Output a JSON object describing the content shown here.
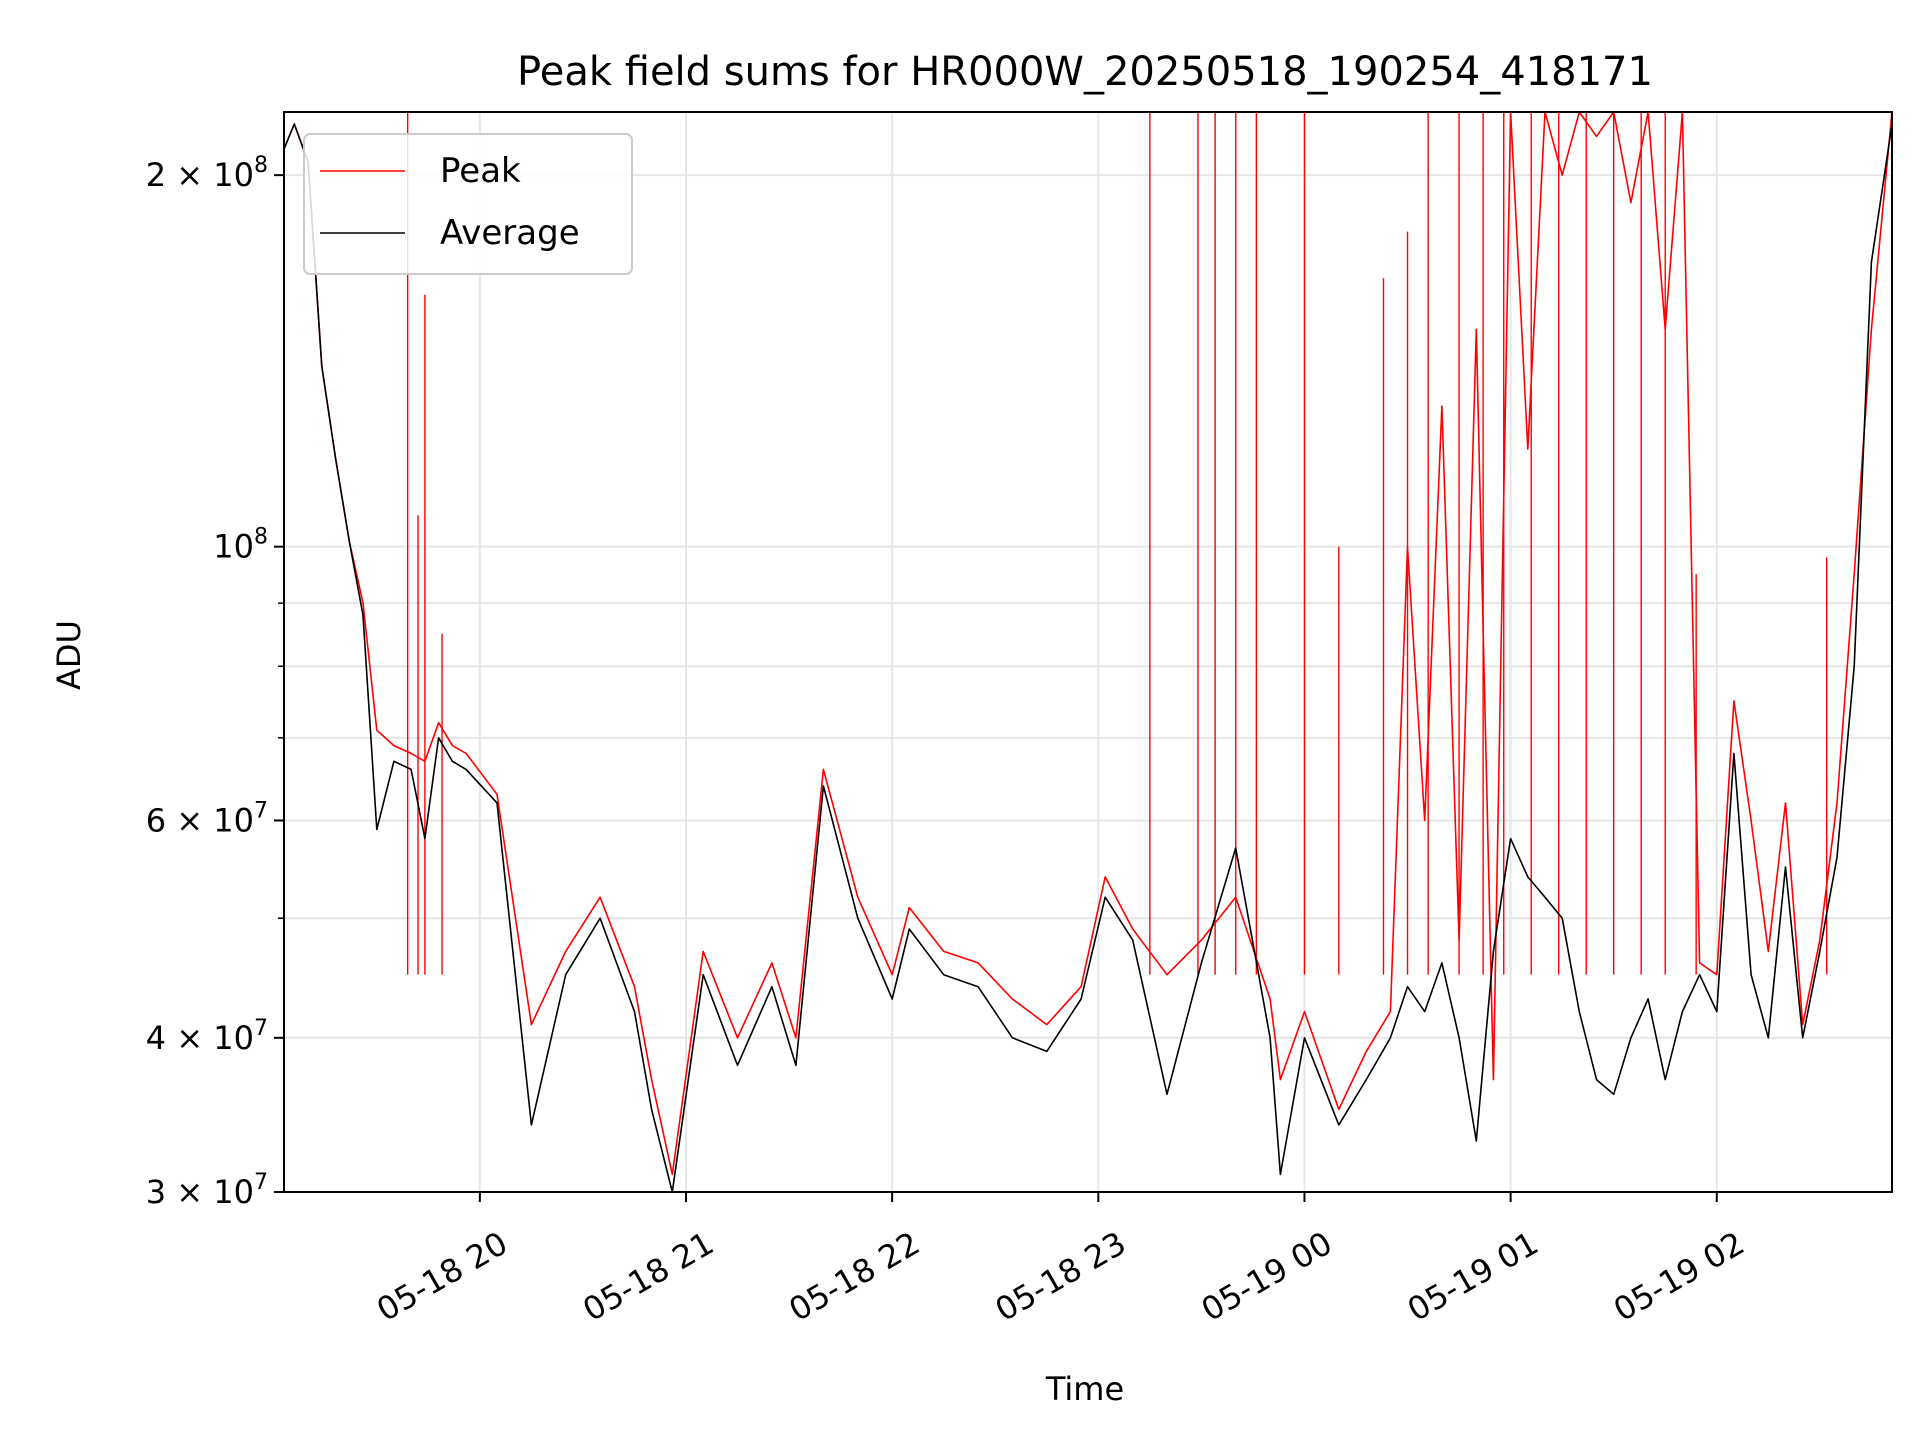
{
  "chart_data": {
    "type": "line",
    "title": "Peak field sums for HR000W_20250518_190254_418171",
    "xlabel": "Time",
    "ylabel": "ADU",
    "yscale": "log",
    "ylim": [
      30000000,
      225000000
    ],
    "xlim": [
      "05-18 19:03",
      "05-19 02:51"
    ],
    "grid": true,
    "legend_position": "top-left",
    "x_tick_labels": [
      "05-18 20",
      "05-18 21",
      "05-18 22",
      "05-18 23",
      "05-19 00",
      "05-19 01",
      "05-19 02"
    ],
    "y_tick_labels": [
      "3 × 10⁷",
      "4 × 10⁷",
      "6 × 10⁷",
      "10⁸",
      "2 × 10⁸"
    ],
    "series": [
      {
        "name": "Peak",
        "color": "#ff0000",
        "x": [
          "05-18 19:03",
          "05-18 19:06",
          "05-18 19:10",
          "05-18 19:14",
          "05-18 19:18",
          "05-18 19:22",
          "05-18 19:26",
          "05-18 19:30",
          "05-18 19:35",
          "05-18 19:40",
          "05-18 19:44",
          "05-18 19:48",
          "05-18 19:52",
          "05-18 19:56",
          "05-18 20:05",
          "05-18 20:15",
          "05-18 20:25",
          "05-18 20:35",
          "05-18 20:45",
          "05-18 20:50",
          "05-18 20:56",
          "05-18 21:05",
          "05-18 21:15",
          "05-18 21:25",
          "05-18 21:32",
          "05-18 21:40",
          "05-18 21:50",
          "05-18 22:00",
          "05-18 22:05",
          "05-18 22:15",
          "05-18 22:25",
          "05-18 22:35",
          "05-18 22:45",
          "05-18 22:55",
          "05-18 23:02",
          "05-18 23:10",
          "05-18 23:20",
          "05-18 23:30",
          "05-18 23:40",
          "05-18 23:50",
          "05-18 23:53",
          "05-19 00:00",
          "05-19 00:10",
          "05-19 00:18",
          "05-19 00:25",
          "05-19 00:30",
          "05-19 00:35",
          "05-19 00:40",
          "05-19 00:45",
          "05-19 00:50",
          "05-19 00:55",
          "05-19 01:00",
          "05-19 01:05",
          "05-19 01:10",
          "05-19 01:15",
          "05-19 01:20",
          "05-19 01:25",
          "05-19 01:30",
          "05-19 01:35",
          "05-19 01:40",
          "05-19 01:45",
          "05-19 01:50",
          "05-19 01:55",
          "05-19 02:00",
          "05-19 02:05",
          "05-19 02:10",
          "05-19 02:15",
          "05-19 02:20",
          "05-19 02:25",
          "05-19 02:30",
          "05-19 02:35",
          "05-19 02:40",
          "05-19 02:45",
          "05-19 02:51"
        ],
        "values": [
          210000000,
          220000000,
          205000000,
          140000000,
          118000000,
          101000000,
          90000000,
          71000000,
          69000000,
          68000000,
          67000000,
          72000000,
          69000000,
          68000000,
          63000000,
          41000000,
          47000000,
          52000000,
          44000000,
          37000000,
          31000000,
          47000000,
          40000000,
          46000000,
          40000000,
          66000000,
          52000000,
          45000000,
          51000000,
          47000000,
          46000000,
          43000000,
          41000000,
          44000000,
          54000000,
          49000000,
          45000000,
          48000000,
          52000000,
          43000000,
          37000000,
          42000000,
          35000000,
          39000000,
          42000000,
          100000000,
          60000000,
          130000000,
          48000000,
          150000000,
          37000000,
          225000000,
          120000000,
          225000000,
          200000000,
          225000000,
          215000000,
          225000000,
          190000000,
          225000000,
          150000000,
          225000000,
          46000000,
          45000000,
          75000000,
          60000000,
          47000000,
          62000000,
          41000000,
          48000000,
          62000000,
          95000000,
          150000000,
          225000000
        ],
        "spikes": [
          {
            "x": "05-18 19:39",
            "value": 225000000
          },
          {
            "x": "05-18 19:42",
            "value": 106000000
          },
          {
            "x": "05-18 19:44",
            "value": 160000000
          },
          {
            "x": "05-18 19:49",
            "value": 85000000
          },
          {
            "x": "05-18 23:15",
            "value": 225000000
          },
          {
            "x": "05-18 23:29",
            "value": 225000000
          },
          {
            "x": "05-18 23:34",
            "value": 225000000
          },
          {
            "x": "05-18 23:40",
            "value": 225000000
          },
          {
            "x": "05-18 23:46",
            "value": 225000000
          },
          {
            "x": "05-19 00:00",
            "value": 225000000
          },
          {
            "x": "05-19 00:10",
            "value": 100000000
          },
          {
            "x": "05-19 00:23",
            "value": 165000000
          },
          {
            "x": "05-19 00:30",
            "value": 180000000
          },
          {
            "x": "05-19 00:36",
            "value": 225000000
          },
          {
            "x": "05-19 00:45",
            "value": 225000000
          },
          {
            "x": "05-19 00:52",
            "value": 225000000
          },
          {
            "x": "05-19 00:58",
            "value": 225000000
          },
          {
            "x": "05-19 01:06",
            "value": 225000000
          },
          {
            "x": "05-19 01:14",
            "value": 225000000
          },
          {
            "x": "05-19 01:22",
            "value": 225000000
          },
          {
            "x": "05-19 01:30",
            "value": 225000000
          },
          {
            "x": "05-19 01:38",
            "value": 225000000
          },
          {
            "x": "05-19 01:45",
            "value": 225000000
          },
          {
            "x": "05-19 01:54",
            "value": 95000000
          },
          {
            "x": "05-19 02:32",
            "value": 98000000
          }
        ]
      },
      {
        "name": "Average",
        "color": "#000000",
        "x": [
          "05-18 19:03",
          "05-18 19:06",
          "05-18 19:10",
          "05-18 19:14",
          "05-18 19:18",
          "05-18 19:22",
          "05-18 19:26",
          "05-18 19:30",
          "05-18 19:35",
          "05-18 19:40",
          "05-18 19:44",
          "05-18 19:48",
          "05-18 19:52",
          "05-18 19:56",
          "05-18 20:05",
          "05-18 20:15",
          "05-18 20:25",
          "05-18 20:35",
          "05-18 20:45",
          "05-18 20:50",
          "05-18 20:56",
          "05-18 21:05",
          "05-18 21:15",
          "05-18 21:25",
          "05-18 21:32",
          "05-18 21:40",
          "05-18 21:50",
          "05-18 22:00",
          "05-18 22:05",
          "05-18 22:15",
          "05-18 22:25",
          "05-18 22:35",
          "05-18 22:45",
          "05-18 22:55",
          "05-18 23:02",
          "05-18 23:10",
          "05-18 23:20",
          "05-18 23:30",
          "05-18 23:40",
          "05-18 23:50",
          "05-18 23:53",
          "05-19 00:00",
          "05-19 00:10",
          "05-19 00:18",
          "05-19 00:25",
          "05-19 00:30",
          "05-19 00:35",
          "05-19 00:40",
          "05-19 00:45",
          "05-19 00:50",
          "05-19 00:55",
          "05-19 01:00",
          "05-19 01:05",
          "05-19 01:10",
          "05-19 01:15",
          "05-19 01:20",
          "05-19 01:25",
          "05-19 01:30",
          "05-19 01:35",
          "05-19 01:40",
          "05-19 01:45",
          "05-19 01:50",
          "05-19 01:55",
          "05-19 02:00",
          "05-19 02:05",
          "05-19 02:10",
          "05-19 02:15",
          "05-19 02:20",
          "05-19 02:25",
          "05-19 02:30",
          "05-19 02:35",
          "05-19 02:40",
          "05-19 02:45",
          "05-19 02:51"
        ],
        "values": [
          210000000,
          220000000,
          205000000,
          140000000,
          118000000,
          101000000,
          88000000,
          59000000,
          67000000,
          66000000,
          58000000,
          70000000,
          67000000,
          66000000,
          62000000,
          34000000,
          45000000,
          50000000,
          42000000,
          35000000,
          30000000,
          45000000,
          38000000,
          44000000,
          38000000,
          64000000,
          50000000,
          43000000,
          49000000,
          45000000,
          44000000,
          40000000,
          39000000,
          43000000,
          52000000,
          48000000,
          36000000,
          46000000,
          57000000,
          40000000,
          31000000,
          40000000,
          34000000,
          37000000,
          40000000,
          44000000,
          42000000,
          46000000,
          40000000,
          33000000,
          47000000,
          58000000,
          54000000,
          52000000,
          50000000,
          42000000,
          37000000,
          36000000,
          40000000,
          43000000,
          37000000,
          42000000,
          45000000,
          42000000,
          68000000,
          45000000,
          40000000,
          55000000,
          40000000,
          47000000,
          56000000,
          80000000,
          170000000,
          220000000
        ]
      }
    ]
  }
}
